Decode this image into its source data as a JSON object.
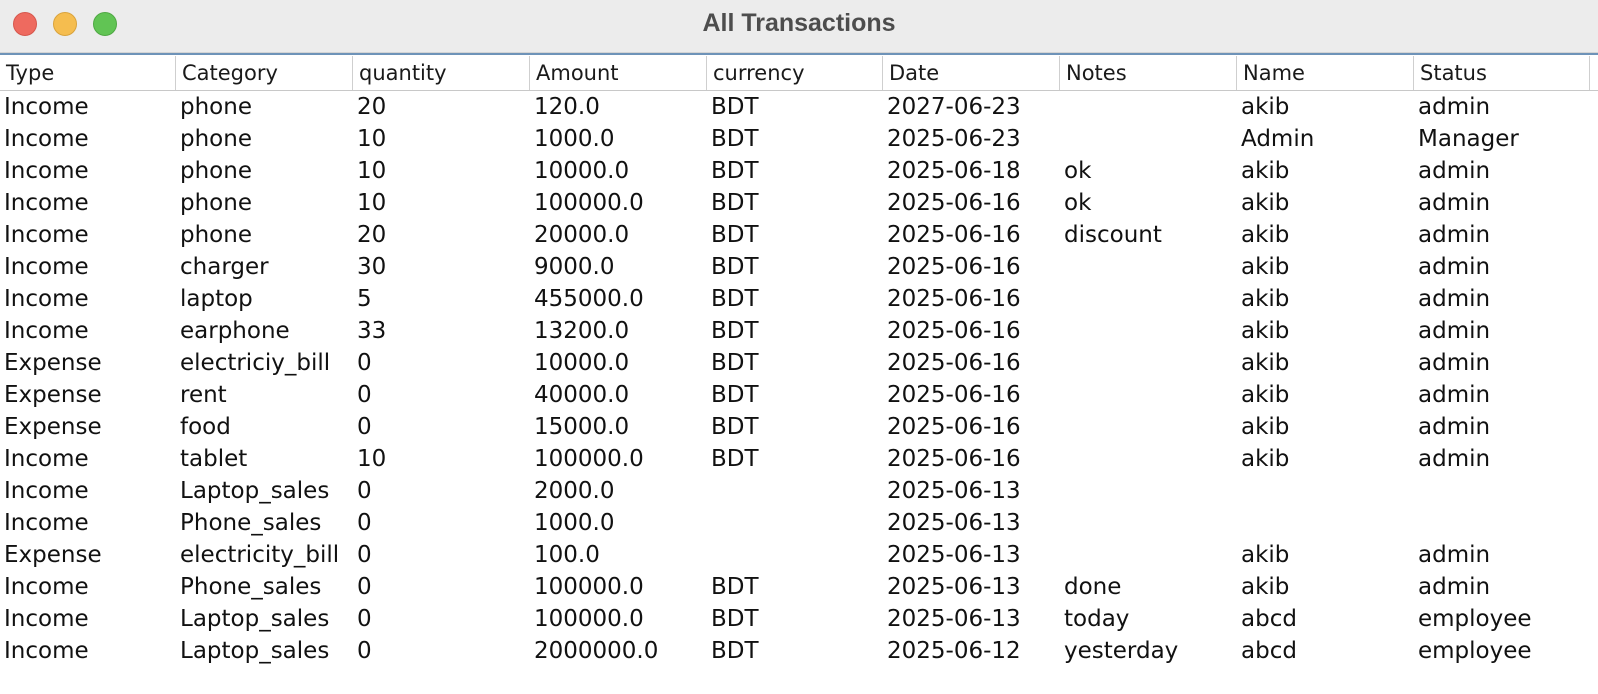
{
  "window": {
    "title": "All Transactions"
  },
  "table": {
    "columns": [
      "Type",
      "Category",
      "quantity",
      "Amount",
      "currency",
      "Date",
      "Notes",
      "Name",
      "Status"
    ],
    "rows": [
      [
        "Income",
        "phone",
        "20",
        "120.0",
        "BDT",
        "2027-06-23",
        "",
        "akib",
        "admin"
      ],
      [
        "Income",
        "phone",
        "10",
        "1000.0",
        "BDT",
        "2025-06-23",
        "",
        "Admin",
        "Manager"
      ],
      [
        "Income",
        "phone",
        "10",
        "10000.0",
        "BDT",
        "2025-06-18",
        "ok",
        "akib",
        "admin"
      ],
      [
        "Income",
        "phone",
        "10",
        "100000.0",
        "BDT",
        "2025-06-16",
        "ok",
        "akib",
        "admin"
      ],
      [
        "Income",
        "phone",
        "20",
        "20000.0",
        "BDT",
        "2025-06-16",
        "discount",
        "akib",
        "admin"
      ],
      [
        "Income",
        "charger",
        "30",
        "9000.0",
        "BDT",
        "2025-06-16",
        "",
        "akib",
        "admin"
      ],
      [
        "Income",
        "laptop",
        "5",
        "455000.0",
        "BDT",
        "2025-06-16",
        "",
        "akib",
        "admin"
      ],
      [
        "Income",
        "earphone",
        "33",
        "13200.0",
        "BDT",
        "2025-06-16",
        "",
        "akib",
        "admin"
      ],
      [
        "Expense",
        "electriciy_bill",
        "0",
        "10000.0",
        "BDT",
        "2025-06-16",
        "",
        "akib",
        "admin"
      ],
      [
        "Expense",
        "rent",
        "0",
        "40000.0",
        "BDT",
        "2025-06-16",
        "",
        "akib",
        "admin"
      ],
      [
        "Expense",
        "food",
        "0",
        "15000.0",
        "BDT",
        "2025-06-16",
        "",
        "akib",
        "admin"
      ],
      [
        "Income",
        "tablet",
        "10",
        "100000.0",
        "BDT",
        "2025-06-16",
        "",
        "akib",
        "admin"
      ],
      [
        "Income",
        "Laptop_sales",
        "0",
        "2000.0",
        "",
        "2025-06-13",
        "",
        "",
        ""
      ],
      [
        "Income",
        "Phone_sales",
        "0",
        "1000.0",
        "",
        "2025-06-13",
        "",
        "",
        ""
      ],
      [
        "Expense",
        "electricity_bill",
        "0",
        "100.0",
        "",
        "2025-06-13",
        "",
        "akib",
        "admin"
      ],
      [
        "Income",
        "Phone_sales",
        "0",
        "100000.0",
        "BDT",
        "2025-06-13",
        "done",
        "akib",
        "admin"
      ],
      [
        "Income",
        "Laptop_sales",
        "0",
        "100000.0",
        "BDT",
        "2025-06-13",
        "today",
        "abcd",
        "employee"
      ],
      [
        "Income",
        "Laptop_sales",
        "0",
        "2000000.0",
        "BDT",
        "2025-06-12",
        "yesterday",
        "abcd",
        "employee"
      ]
    ]
  }
}
